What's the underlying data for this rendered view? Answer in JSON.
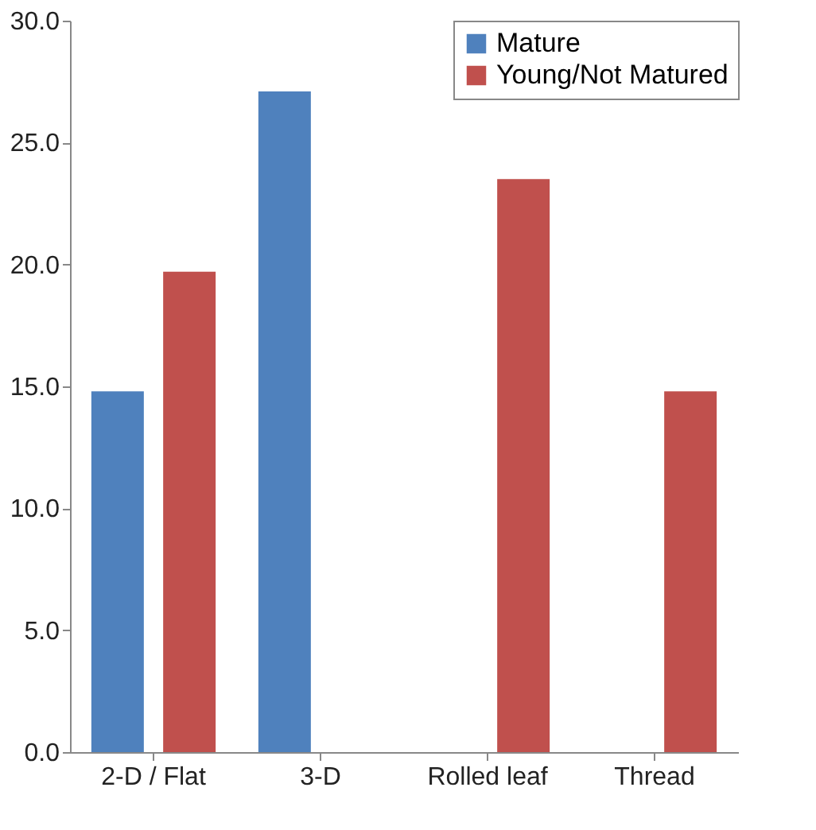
{
  "chart_data": {
    "type": "bar",
    "categories": [
      "2-D / Flat",
      "3-D",
      "Rolled leaf",
      "Thread"
    ],
    "series": [
      {
        "name": "Mature",
        "color": "#4f81bd",
        "values": [
          14.8,
          27.1,
          null,
          null
        ]
      },
      {
        "name": "Young/Not Matured",
        "color": "#c0504d",
        "values": [
          19.7,
          null,
          23.5,
          14.8
        ]
      }
    ],
    "ylim": [
      0,
      30
    ],
    "yticks": [
      {
        "value": 0,
        "label": "0.0"
      },
      {
        "value": 5,
        "label": "5.0"
      },
      {
        "value": 10,
        "label": "10.0"
      },
      {
        "value": 15,
        "label": "15.0"
      },
      {
        "value": 20,
        "label": "20.0"
      },
      {
        "value": 25,
        "label": "25.0"
      },
      {
        "value": 30,
        "label": "30.0"
      }
    ],
    "grid": false,
    "legend": "top right"
  }
}
